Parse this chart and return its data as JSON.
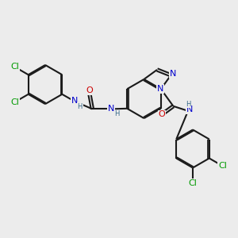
{
  "bg_color": "#ececec",
  "bond_color": "#1a1a1a",
  "bond_lw": 1.5,
  "dbo": 0.055,
  "atom_colors": {
    "N": "#0000cc",
    "O": "#cc0000",
    "Cl": "#009900",
    "H": "#336688"
  },
  "fs": 8.0,
  "fs_sub": 6.0
}
